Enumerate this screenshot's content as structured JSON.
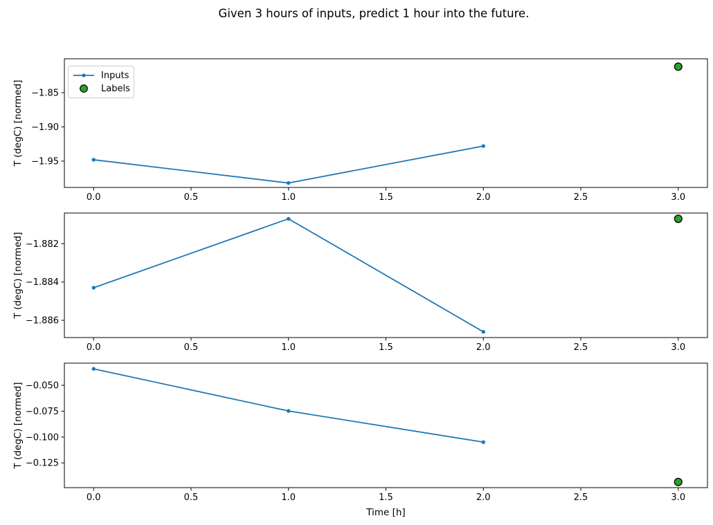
{
  "title": "Given 3 hours of inputs, predict 1 hour into the future.",
  "legend": {
    "items": [
      {
        "label": "Inputs",
        "marker": "line-dot"
      },
      {
        "label": "Labels",
        "marker": "circle"
      }
    ]
  },
  "colors": {
    "inputs": "#1f77b4",
    "labels_fill": "#2ca02c",
    "labels_edge": "#000000",
    "axis": "#000000",
    "legend_border": "#cccccc"
  },
  "x_axis": {
    "label": "Time [h]",
    "xlim": [
      -0.15,
      3.15
    ],
    "ticks": [
      0.0,
      0.5,
      1.0,
      1.5,
      2.0,
      2.5,
      3.0
    ],
    "tick_labels": [
      "0.0",
      "0.5",
      "1.0",
      "1.5",
      "2.0",
      "2.5",
      "3.0"
    ]
  },
  "chart_data": [
    {
      "type": "line",
      "ylabel": "T (degC) [normed]",
      "ylim": [
        -1.9885,
        -1.8005
      ],
      "yticks": [
        {
          "value": -1.85,
          "label": "−1.85"
        },
        {
          "value": -1.9,
          "label": "−1.90"
        },
        {
          "value": -1.95,
          "label": "−1.95"
        }
      ],
      "series": [
        {
          "name": "Inputs",
          "x": [
            0,
            1,
            2
          ],
          "y": [
            -1.948,
            -1.982,
            -1.928
          ]
        }
      ],
      "labels_point": {
        "name": "Labels",
        "x": 3,
        "y": -1.812
      }
    },
    {
      "type": "line",
      "ylabel": "T (degC) [normed]",
      "ylim": [
        -1.8869,
        -1.8804
      ],
      "yticks": [
        {
          "value": -1.882,
          "label": "−1.882"
        },
        {
          "value": -1.884,
          "label": "−1.884"
        },
        {
          "value": -1.886,
          "label": "−1.886"
        }
      ],
      "series": [
        {
          "name": "Inputs",
          "x": [
            0,
            1,
            2
          ],
          "y": [
            -1.8843,
            -1.8807,
            -1.8866
          ]
        }
      ],
      "labels_point": {
        "name": "Labels",
        "x": 3,
        "y": -1.8807
      }
    },
    {
      "type": "line",
      "ylabel": "T (degC) [normed]",
      "ylim": [
        -0.1489,
        -0.0286
      ],
      "yticks": [
        {
          "value": -0.05,
          "label": "−0.050"
        },
        {
          "value": -0.075,
          "label": "−0.075"
        },
        {
          "value": -0.1,
          "label": "−0.100"
        },
        {
          "value": -0.125,
          "label": "−0.125"
        }
      ],
      "series": [
        {
          "name": "Inputs",
          "x": [
            0,
            1,
            2
          ],
          "y": [
            -0.0341,
            -0.0748,
            -0.1049
          ]
        }
      ],
      "labels_point": {
        "name": "Labels",
        "x": 3,
        "y": -0.1434
      }
    }
  ]
}
